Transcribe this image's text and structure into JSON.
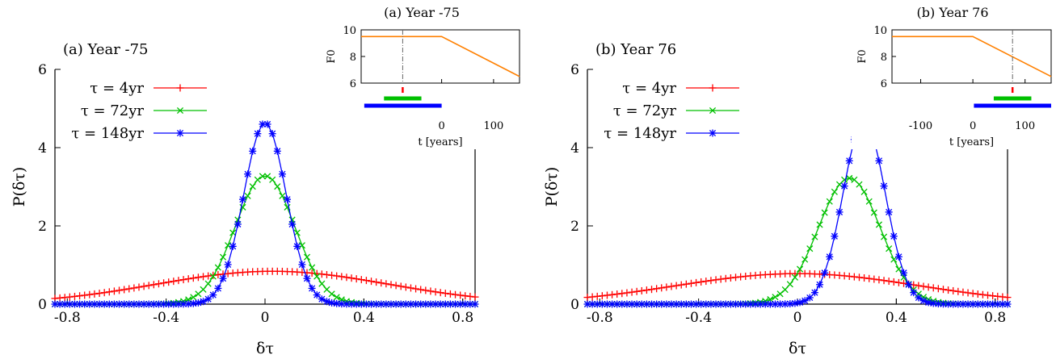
{
  "chart_data": [
    {
      "type": "line",
      "title": "(a) Year -75",
      "xlabel": "δτ",
      "ylabel": "P(δτ)",
      "xlim": [
        -0.85,
        0.85
      ],
      "ylim": [
        0,
        6
      ],
      "xticks": [
        "-0.8",
        "-0.4",
        "0",
        "0.4",
        "0.8"
      ],
      "yticks": [
        "0",
        "2",
        "4",
        "6"
      ],
      "legend_position": "top-left",
      "grid": false,
      "series": [
        {
          "name": "τ = 4yr",
          "color": "#ff0000",
          "marker": "+",
          "dist": {
            "mean": 0.03,
            "peak": 0.84,
            "sigma": 0.47
          }
        },
        {
          "name": "τ = 72yr",
          "color": "#00c000",
          "marker": "x",
          "dist": {
            "mean": 0.0,
            "peak": 3.28,
            "sigma": 0.12
          }
        },
        {
          "name": "τ = 148yr",
          "color": "#0000ff",
          "marker": "*",
          "dist": {
            "mean": 0.0,
            "peak": 4.63,
            "sigma": 0.086
          }
        }
      ],
      "inset": {
        "type": "line",
        "title": "(a) Year -75",
        "xlabel": "t [years]",
        "ylabel": "F0",
        "xlim": [
          -155,
          150
        ],
        "ylim": [
          6,
          10
        ],
        "xticks": [
          "0",
          "100"
        ],
        "yticks": [
          "6",
          "8",
          "10"
        ],
        "forcing": {
          "color": "#ff8000",
          "points": [
            [
              -155,
              9.5
            ],
            [
              0,
              9.5
            ],
            [
              150,
              6.5
            ]
          ]
        },
        "marker_year": -75,
        "windows": [
          {
            "name": "τ = 4yr",
            "color": "#ff0000",
            "range": [
              -77,
              -73
            ]
          },
          {
            "name": "τ = 72yr",
            "color": "#00c000",
            "range": [
              -111,
              -39
            ]
          },
          {
            "name": "τ = 148yr",
            "color": "#0000ff",
            "range": [
              -149,
              0
            ]
          }
        ]
      }
    },
    {
      "type": "line",
      "title": "(b) Year 76",
      "xlabel": "δτ",
      "ylabel": "P(δτ)",
      "xlim": [
        -0.85,
        0.85
      ],
      "ylim": [
        0,
        6
      ],
      "xticks": [
        "-0.8",
        "-0.4",
        "0",
        "0.4",
        "0.8"
      ],
      "yticks": [
        "0",
        "2",
        "4",
        "6"
      ],
      "legend_position": "top-left",
      "grid": false,
      "series": [
        {
          "name": "τ = 4yr",
          "color": "#ff0000",
          "marker": "+",
          "dist": {
            "mean": 0.0,
            "peak": 0.78,
            "sigma": 0.49
          }
        },
        {
          "name": "τ = 72yr",
          "color": "#00c000",
          "marker": "x",
          "dist": {
            "mean": 0.21,
            "peak": 3.22,
            "sigma": 0.125
          }
        },
        {
          "name": "τ = 148yr",
          "color": "#0000ff",
          "marker": "*",
          "dist": {
            "mean": 0.27,
            "peak": 4.7,
            "sigma": 0.085
          }
        }
      ],
      "inset": {
        "type": "line",
        "title": "(b) Year 76",
        "xlabel": "t [years]",
        "ylabel": "F0",
        "xlim": [
          -155,
          150
        ],
        "ylim": [
          6,
          10
        ],
        "xticks": [
          "-100",
          "0",
          "100"
        ],
        "yticks": [
          "6",
          "8",
          "10"
        ],
        "forcing": {
          "color": "#ff8000",
          "points": [
            [
              -155,
              9.5
            ],
            [
              0,
              9.5
            ],
            [
              150,
              6.5
            ]
          ]
        },
        "marker_year": 76,
        "windows": [
          {
            "name": "τ = 4yr",
            "color": "#ff0000",
            "range": [
              74,
              78
            ]
          },
          {
            "name": "τ = 72yr",
            "color": "#00c000",
            "range": [
              40,
              112
            ]
          },
          {
            "name": "τ = 148yr",
            "color": "#0000ff",
            "range": [
              2,
              150
            ]
          }
        ]
      }
    }
  ]
}
